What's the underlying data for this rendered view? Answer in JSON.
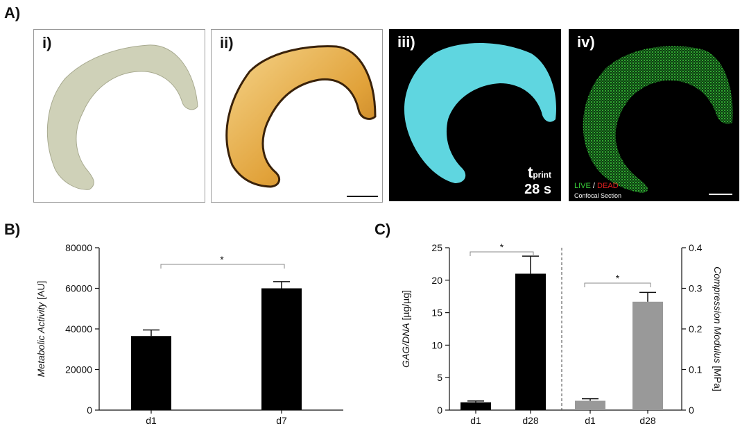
{
  "panels": {
    "A": {
      "letter": "A)",
      "tiles": [
        {
          "label": "i)"
        },
        {
          "label": "ii)"
        },
        {
          "label": "iii)",
          "tprint_main": "t",
          "tprint_sub": "print",
          "time": "28 s"
        },
        {
          "label": "iv)",
          "live": "LIVE",
          "slash": " / ",
          "dead": "DEAD",
          "section": "Confocal Section"
        }
      ]
    },
    "B": {
      "letter": "B)"
    },
    "C": {
      "letter": "C)"
    }
  },
  "colors": {
    "black_bar": "#000000",
    "grey_bar": "#999999",
    "cyan": "#5fd6e0",
    "green": "#2fbf3a",
    "tan": "#d8d9c2",
    "amber": "#e3a437"
  },
  "chart_data": [
    {
      "type": "bar",
      "panel": "B",
      "categories": [
        "d1",
        "d7"
      ],
      "values": [
        36500,
        60000
      ],
      "errors": [
        3000,
        3300
      ],
      "ylabel_italic": "Metabolic Activity",
      "ylabel_unit": " [AU]",
      "ylim": [
        0,
        80000
      ],
      "yticks": [
        0,
        20000,
        40000,
        60000,
        80000
      ],
      "significance": [
        {
          "between": [
            "d1",
            "d7"
          ],
          "label": "*"
        }
      ],
      "bar_color": "#000000"
    },
    {
      "type": "bar",
      "panel": "C",
      "groups": [
        {
          "axis": "left",
          "categories": [
            "d1",
            "d28"
          ],
          "values": [
            1.2,
            21.0
          ],
          "errors": [
            0.2,
            2.7
          ],
          "bar_color": "#000000",
          "ylabel_italic": "GAG/DNA",
          "ylabel_unit": " [µg/µg]",
          "ylim": [
            0,
            25
          ],
          "yticks": [
            "0",
            "5",
            "10",
            "15",
            "20",
            "25"
          ],
          "significance": [
            {
              "between": [
                "d1",
                "d28"
              ],
              "label": "*"
            }
          ]
        },
        {
          "axis": "right",
          "categories": [
            "d1",
            "d28"
          ],
          "values": [
            0.023,
            0.267
          ],
          "errors": [
            0.005,
            0.023
          ],
          "bar_color": "#999999",
          "ylabel_italic": "Compression Modulus",
          "ylabel_unit": " [MPa]",
          "ylim": [
            0,
            0.4
          ],
          "yticks": [
            "0",
            "0.1",
            "0.2",
            "0.3",
            "0.4"
          ],
          "significance": [
            {
              "between": [
                "d1",
                "d28"
              ],
              "label": "*"
            }
          ]
        }
      ]
    }
  ]
}
